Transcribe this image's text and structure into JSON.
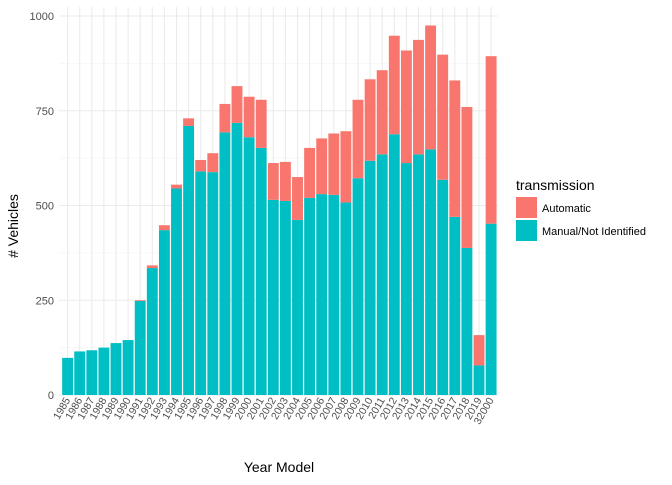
{
  "chart_data": {
    "type": "bar",
    "stacked": true,
    "title": "",
    "xlabel": "Year Model",
    "ylabel": "# Vehicles",
    "ylim": [
      0,
      1000
    ],
    "yticks": [
      0,
      250,
      500,
      750,
      1000
    ],
    "grid": true,
    "legend_position": "right",
    "legend_title": "transmission",
    "categories": [
      "1985",
      "1986",
      "1987",
      "1988",
      "1989",
      "1990",
      "1991",
      "1992",
      "1993",
      "1994",
      "1995",
      "1996",
      "1997",
      "1998",
      "1999",
      "2000",
      "2001",
      "2002",
      "2003",
      "2004",
      "2005",
      "2006",
      "2007",
      "2008",
      "2009",
      "2010",
      "2011",
      "2012",
      "2013",
      "2014",
      "2015",
      "2016",
      "2017",
      "2018",
      "2019",
      "32000"
    ],
    "series": [
      {
        "name": "Manual/Not Identified",
        "color": "#00BFC4",
        "values": [
          98,
          115,
          118,
          125,
          137,
          145,
          248,
          335,
          435,
          545,
          710,
          590,
          588,
          693,
          718,
          680,
          652,
          515,
          512,
          462,
          520,
          530,
          528,
          508,
          572,
          618,
          635,
          688,
          612,
          635,
          648,
          568,
          470,
          388,
          78,
          452
        ]
      },
      {
        "name": "Automatic",
        "color": "#F8766D",
        "values": [
          0,
          0,
          0,
          0,
          0,
          0,
          2,
          7,
          13,
          10,
          20,
          30,
          50,
          75,
          97,
          107,
          127,
          97,
          103,
          113,
          132,
          147,
          162,
          188,
          207,
          215,
          222,
          260,
          297,
          302,
          327,
          330,
          360,
          372,
          80,
          442
        ]
      }
    ]
  }
}
